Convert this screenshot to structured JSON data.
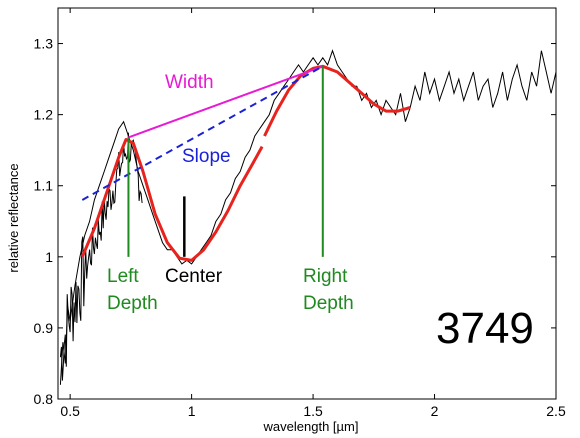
{
  "chart_data": {
    "type": "line",
    "title": "",
    "xlabel": "wavelength [µm]",
    "ylabel": "relative reflectance",
    "xlim": [
      0.45,
      2.5
    ],
    "ylim": [
      0.8,
      1.35
    ],
    "x_ticks": [
      0.5,
      1,
      1.5,
      2,
      2.5
    ],
    "x_tick_labels": [
      "0.5",
      "1",
      "1.5",
      "2",
      "2.5"
    ],
    "y_ticks": [
      0.8,
      0.9,
      1.0,
      1.1,
      1.2,
      1.3
    ],
    "y_tick_labels": [
      "0.8",
      "0.9",
      "1",
      "1.1",
      "1.2",
      "1.3"
    ],
    "grid": false,
    "box": true,
    "id_label": "3749",
    "colors": {
      "spectrum": "#000000",
      "fit": "#e8231e",
      "width": "#e81ad6",
      "slope": "#1a22d6",
      "depth": "#1f8a1f",
      "center": "#000000"
    },
    "spectrum": {
      "x": [
        0.46,
        0.47,
        0.48,
        0.49,
        0.5,
        0.52,
        0.54,
        0.56,
        0.58,
        0.6,
        0.62,
        0.64,
        0.66,
        0.68,
        0.7,
        0.72,
        0.74,
        0.76,
        0.78,
        0.8,
        0.82,
        0.84,
        0.86,
        0.88,
        0.9,
        0.92,
        0.94,
        0.96,
        0.98,
        1.0,
        1.02,
        1.04,
        1.06,
        1.08,
        1.1,
        1.12,
        1.14,
        1.16,
        1.18,
        1.2,
        1.22,
        1.24,
        1.26,
        1.28,
        1.3,
        1.32,
        1.34,
        1.36,
        1.38,
        1.4,
        1.42,
        1.44,
        1.46,
        1.48,
        1.5,
        1.52,
        1.54,
        1.56,
        1.58,
        1.6,
        1.62,
        1.64,
        1.66,
        1.68,
        1.7,
        1.72,
        1.74,
        1.76,
        1.78,
        1.8,
        1.82,
        1.84,
        1.86,
        1.88,
        1.9,
        1.92,
        1.94,
        1.96,
        1.98,
        2.0,
        2.02,
        2.04,
        2.06,
        2.08,
        2.1,
        2.12,
        2.14,
        2.16,
        2.18,
        2.2,
        2.22,
        2.24,
        2.26,
        2.28,
        2.3,
        2.32,
        2.34,
        2.36,
        2.38,
        2.4,
        2.42,
        2.44,
        2.46,
        2.48,
        2.5
      ],
      "y": [
        0.82,
        0.88,
        0.85,
        0.93,
        0.91,
        0.96,
        1.0,
        1.03,
        1.05,
        1.08,
        1.1,
        1.12,
        1.14,
        1.16,
        1.18,
        1.19,
        1.17,
        1.15,
        1.12,
        1.1,
        1.08,
        1.06,
        1.04,
        1.02,
        1.01,
        1.01,
        1.0,
        0.99,
        0.995,
        0.99,
        1.0,
        1.01,
        1.02,
        1.03,
        1.05,
        1.06,
        1.08,
        1.09,
        1.11,
        1.12,
        1.14,
        1.15,
        1.17,
        1.18,
        1.19,
        1.2,
        1.22,
        1.23,
        1.24,
        1.25,
        1.26,
        1.27,
        1.26,
        1.27,
        1.28,
        1.27,
        1.28,
        1.27,
        1.29,
        1.27,
        1.26,
        1.25,
        1.24,
        1.24,
        1.22,
        1.23,
        1.21,
        1.22,
        1.2,
        1.22,
        1.21,
        1.2,
        1.23,
        1.19,
        1.21,
        1.24,
        1.22,
        1.26,
        1.23,
        1.25,
        1.22,
        1.24,
        1.26,
        1.23,
        1.25,
        1.22,
        1.24,
        1.26,
        1.22,
        1.24,
        1.25,
        1.21,
        1.23,
        1.26,
        1.22,
        1.25,
        1.27,
        1.24,
        1.22,
        1.26,
        1.24,
        1.29,
        1.26,
        1.23,
        1.26
      ]
    },
    "fit_left_band": {
      "x": [
        0.55,
        0.6,
        0.65,
        0.7,
        0.73,
        0.76,
        0.8,
        0.85,
        0.9,
        0.95,
        1.0,
        1.05,
        1.1,
        1.15,
        1.2,
        1.25,
        1.29
      ],
      "y": [
        1.0,
        1.04,
        1.09,
        1.14,
        1.165,
        1.16,
        1.12,
        1.06,
        1.02,
        0.998,
        0.995,
        1.01,
        1.035,
        1.065,
        1.1,
        1.13,
        1.155
      ]
    },
    "fit_right_band": {
      "x": [
        1.3,
        1.35,
        1.4,
        1.45,
        1.5,
        1.54,
        1.6,
        1.65,
        1.7,
        1.75,
        1.8,
        1.85,
        1.9
      ],
      "y": [
        1.17,
        1.205,
        1.235,
        1.255,
        1.265,
        1.268,
        1.26,
        1.245,
        1.23,
        1.215,
        1.205,
        1.205,
        1.21
      ]
    },
    "width_line": {
      "x": [
        0.74,
        1.54
      ],
      "y": [
        1.168,
        1.268
      ]
    },
    "slope_line": {
      "x": [
        0.55,
        1.54
      ],
      "y": [
        1.08,
        1.268
      ]
    },
    "left_depth_line": {
      "x": [
        0.74,
        0.74
      ],
      "y": [
        1.168,
        1.0
      ]
    },
    "right_depth_line": {
      "x": [
        1.54,
        1.54
      ],
      "y": [
        1.268,
        1.0
      ]
    },
    "center_line": {
      "x": [
        0.97,
        0.97
      ],
      "y": [
        1.085,
        1.0
      ]
    },
    "annotations": {
      "width": "Width",
      "slope": "Slope",
      "left_depth_1": "Left",
      "left_depth_2": "Depth",
      "center": "Center",
      "right_depth_1": "Right",
      "right_depth_2": "Depth"
    }
  }
}
